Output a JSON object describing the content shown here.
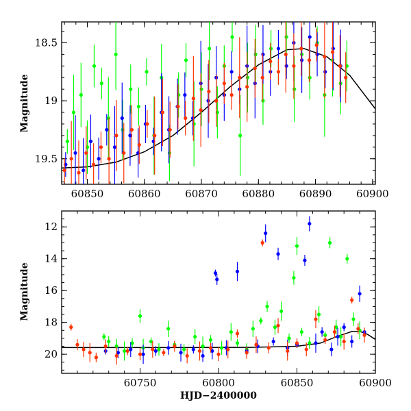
{
  "chart_data": [
    {
      "type": "scatter",
      "title": "",
      "xlabel": "",
      "ylabel": "Magnitude",
      "xlim": [
        60845.5,
        60900.5
      ],
      "ylim": [
        19.72,
        18.32
      ],
      "y_inverted": true,
      "x_ticks": [
        "60850",
        "60860",
        "60870",
        "60880",
        "60890",
        "60900"
      ],
      "y_ticks": [
        "18.5",
        "19",
        "19.5"
      ],
      "grid": false,
      "legend": "none",
      "series": [
        {
          "color": "#00ff00",
          "marker": "circle",
          "points": [
            [
              60846.5,
              19.35
            ],
            [
              60847.6,
              19.1
            ],
            [
              60848.9,
              18.95
            ],
            [
              60850.0,
              19.4
            ],
            [
              60851.2,
              18.7
            ],
            [
              60852.5,
              18.85
            ],
            [
              60853.7,
              19.15
            ],
            [
              60855.0,
              18.6
            ],
            [
              60856.2,
              19.25
            ],
            [
              60857.6,
              18.9
            ],
            [
              60859.0,
              19.05
            ],
            [
              60860.4,
              18.75
            ],
            [
              60861.7,
              19.3
            ],
            [
              60863.0,
              18.8
            ],
            [
              60864.4,
              19.45
            ],
            [
              60866.0,
              18.95
            ],
            [
              60867.3,
              18.65
            ],
            [
              60868.7,
              19.2
            ],
            [
              60870.0,
              18.9
            ],
            [
              60871.4,
              18.55
            ],
            [
              60872.8,
              19.1
            ],
            [
              60874.0,
              18.7
            ],
            [
              60875.4,
              18.45
            ],
            [
              60876.8,
              19.3
            ],
            [
              60878.1,
              18.8
            ],
            [
              60879.5,
              18.6
            ],
            [
              60880.8,
              19.0
            ],
            [
              60882.2,
              18.55
            ],
            [
              60883.5,
              18.75
            ],
            [
              60884.9,
              18.45
            ],
            [
              60886.3,
              18.9
            ],
            [
              60887.6,
              18.6
            ],
            [
              60889.0,
              18.8
            ],
            [
              60890.3,
              18.5
            ],
            [
              60891.6,
              18.95
            ],
            [
              60893.0,
              18.65
            ],
            [
              60894.4,
              18.85
            ],
            [
              60895.5,
              18.7
            ]
          ]
        },
        {
          "color": "#0000ff",
          "marker": "circle",
          "points": [
            [
              60846.2,
              19.55
            ],
            [
              60847.9,
              19.45
            ],
            [
              60849.3,
              19.6
            ],
            [
              60850.6,
              19.35
            ],
            [
              60852.0,
              19.5
            ],
            [
              60853.4,
              19.25
            ],
            [
              60854.8,
              19.4
            ],
            [
              60856.1,
              19.15
            ],
            [
              60857.5,
              19.3
            ],
            [
              60858.9,
              19.45
            ],
            [
              60860.2,
              19.2
            ],
            [
              60861.6,
              19.35
            ],
            [
              60863.0,
              19.1
            ],
            [
              60864.3,
              19.25
            ],
            [
              60865.8,
              19.05
            ],
            [
              60867.1,
              18.95
            ],
            [
              60868.5,
              19.15
            ],
            [
              60869.9,
              18.85
            ],
            [
              60871.2,
              19.0
            ],
            [
              60872.6,
              18.8
            ],
            [
              60874.0,
              18.95
            ],
            [
              60875.3,
              18.75
            ],
            [
              60876.7,
              18.9
            ],
            [
              60878.0,
              18.7
            ],
            [
              60879.4,
              18.85
            ],
            [
              60880.8,
              18.6
            ],
            [
              60882.1,
              18.75
            ],
            [
              60883.5,
              18.55
            ],
            [
              60884.9,
              18.7
            ],
            [
              60886.2,
              18.5
            ],
            [
              60887.6,
              18.65
            ],
            [
              60889.0,
              18.45
            ],
            [
              60890.3,
              18.6
            ],
            [
              60891.7,
              18.75
            ],
            [
              60893.1,
              18.55
            ],
            [
              60894.4,
              18.7
            ]
          ]
        },
        {
          "color": "#ff3300",
          "marker": "circle",
          "points": [
            [
              60846.0,
              19.6
            ],
            [
              60847.2,
              19.5
            ],
            [
              60848.5,
              19.62
            ],
            [
              60849.8,
              19.45
            ],
            [
              60851.1,
              19.55
            ],
            [
              60852.4,
              19.4
            ],
            [
              60853.8,
              19.5
            ],
            [
              60855.1,
              19.3
            ],
            [
              60856.4,
              19.45
            ],
            [
              60857.8,
              19.25
            ],
            [
              60859.1,
              19.38
            ],
            [
              60860.5,
              19.2
            ],
            [
              60861.8,
              19.3
            ],
            [
              60863.2,
              19.1
            ],
            [
              60864.5,
              19.25
            ],
            [
              60865.9,
              19.05
            ],
            [
              60867.2,
              19.15
            ],
            [
              60868.6,
              18.98
            ],
            [
              60869.9,
              19.08
            ],
            [
              60871.3,
              18.92
            ],
            [
              60872.6,
              19.0
            ],
            [
              60874.0,
              18.85
            ],
            [
              60875.3,
              18.95
            ],
            [
              60876.7,
              18.8
            ],
            [
              60878.0,
              18.88
            ],
            [
              60879.4,
              18.72
            ],
            [
              60880.7,
              18.8
            ],
            [
              60882.1,
              18.66
            ],
            [
              60883.5,
              18.75
            ],
            [
              60884.8,
              18.6
            ],
            [
              60886.2,
              18.7
            ],
            [
              60887.5,
              18.55
            ],
            [
              60888.9,
              18.65
            ],
            [
              60890.2,
              18.52
            ],
            [
              60891.6,
              18.62
            ],
            [
              60893.0,
              18.58
            ],
            [
              60894.3,
              18.7
            ],
            [
              60895.3,
              18.8
            ]
          ]
        }
      ],
      "model_curve": {
        "color": "#000000",
        "points": [
          [
            60845.5,
            19.58
          ],
          [
            60850,
            19.57
          ],
          [
            60855,
            19.53
          ],
          [
            60860,
            19.44
          ],
          [
            60865,
            19.3
          ],
          [
            60870,
            19.1
          ],
          [
            60875,
            18.88
          ],
          [
            60880,
            18.69
          ],
          [
            60885,
            18.56
          ],
          [
            60888,
            18.55
          ],
          [
            60892,
            18.62
          ],
          [
            60896,
            18.78
          ],
          [
            60900.5,
            19.07
          ]
        ]
      }
    },
    {
      "type": "scatter",
      "title": "",
      "xlabel": "HJD−2400000",
      "ylabel": "Magnitude",
      "xlim": [
        60700,
        60900
      ],
      "ylim": [
        21.2,
        11.0
      ],
      "y_inverted": true,
      "x_ticks": [
        "60750",
        "60800",
        "60850",
        "60900"
      ],
      "y_ticks": [
        "12",
        "14",
        "16",
        "18",
        "20"
      ],
      "grid": false,
      "legend": "none",
      "series": [
        {
          "color": "#00ff00",
          "marker": "circle",
          "points": [
            [
              60727,
              18.9
            ],
            [
              60730,
              19.2
            ],
            [
              60735,
              19.5
            ],
            [
              60740,
              19.8
            ],
            [
              60745,
              19.3
            ],
            [
              60750,
              17.6
            ],
            [
              60752,
              19.6
            ],
            [
              60757,
              19.2
            ],
            [
              60762,
              19.7
            ],
            [
              60768,
              18.4
            ],
            [
              60772,
              19.4
            ],
            [
              60778,
              19.7
            ],
            [
              60785,
              18.9
            ],
            [
              60790,
              19.5
            ],
            [
              60795,
              19.1
            ],
            [
              60802,
              19.6
            ],
            [
              60808,
              18.6
            ],
            [
              60812,
              19.3
            ],
            [
              60818,
              19.7
            ],
            [
              60822,
              18.4
            ],
            [
              60827,
              17.9
            ],
            [
              60831,
              17.0
            ],
            [
              60836,
              18.3
            ],
            [
              60840,
              17.3
            ],
            [
              60845,
              19.0
            ],
            [
              60848,
              15.2
            ],
            [
              60850,
              13.2
            ],
            [
              60853,
              18.6
            ],
            [
              60858,
              19.3
            ],
            [
              60864,
              17.5
            ],
            [
              60868,
              18.8
            ],
            [
              60871,
              13.0
            ],
            [
              60875,
              18.3
            ],
            [
              60878,
              18.9
            ],
            [
              60882,
              14.0
            ],
            [
              60886,
              17.8
            ],
            [
              60890,
              18.5
            ]
          ]
        },
        {
          "color": "#0000ff",
          "marker": "circle",
          "points": [
            [
              60728,
              19.8
            ],
            [
              60736,
              19.9
            ],
            [
              60744,
              19.7
            ],
            [
              60752,
              20.0
            ],
            [
              60760,
              19.8
            ],
            [
              60768,
              19.6
            ],
            [
              60776,
              19.9
            ],
            [
              60784,
              19.7
            ],
            [
              60790,
              20.1
            ],
            [
              60796,
              19.8
            ],
            [
              60798,
              14.9
            ],
            [
              60799,
              15.3
            ],
            [
              60805,
              19.6
            ],
            [
              60812,
              14.8
            ],
            [
              60818,
              19.8
            ],
            [
              60825,
              19.5
            ],
            [
              60830,
              12.4
            ],
            [
              60835,
              19.2
            ],
            [
              60838,
              13.7
            ],
            [
              60844,
              19.6
            ],
            [
              60850,
              19.4
            ],
            [
              60855,
              14.1
            ],
            [
              60858,
              11.8
            ],
            [
              60862,
              19.3
            ],
            [
              60866,
              18.6
            ],
            [
              60872,
              19.7
            ],
            [
              60876,
              18.9
            ],
            [
              60880,
              18.3
            ],
            [
              60885,
              19.2
            ],
            [
              60890,
              16.2
            ],
            [
              60893,
              18.6
            ]
          ]
        },
        {
          "color": "#ff3300",
          "marker": "circle",
          "points": [
            [
              60706,
              18.3
            ],
            [
              60710,
              19.4
            ],
            [
              60714,
              19.7
            ],
            [
              60718,
              19.9
            ],
            [
              60722,
              20.2
            ],
            [
              60728,
              19.5
            ],
            [
              60735,
              20.1
            ],
            [
              60742,
              19.8
            ],
            [
              60750,
              20.0
            ],
            [
              60758,
              19.7
            ],
            [
              60765,
              19.9
            ],
            [
              60772,
              19.5
            ],
            [
              60780,
              20.1
            ],
            [
              60788,
              19.8
            ],
            [
              60795,
              19.6
            ],
            [
              60800,
              20.0
            ],
            [
              60806,
              19.7
            ],
            [
              60812,
              18.7
            ],
            [
              60818,
              19.9
            ],
            [
              60824,
              19.4
            ],
            [
              60828,
              13.0
            ],
            [
              60832,
              19.6
            ],
            [
              60838,
              18.2
            ],
            [
              60844,
              19.8
            ],
            [
              60850,
              19.3
            ],
            [
              60856,
              19.7
            ],
            [
              60862,
              17.8
            ],
            [
              60868,
              19.1
            ],
            [
              60874,
              18.6
            ],
            [
              60880,
              19.2
            ],
            [
              60885,
              16.6
            ],
            [
              60889,
              18.4
            ],
            [
              60893,
              18.8
            ]
          ]
        }
      ],
      "model_curve": {
        "color": "#000000",
        "points": [
          [
            60700,
            19.58
          ],
          [
            60760,
            19.58
          ],
          [
            60820,
            19.57
          ],
          [
            60850,
            19.5
          ],
          [
            60865,
            19.3
          ],
          [
            60875,
            18.9
          ],
          [
            60885,
            18.57
          ],
          [
            60890,
            18.56
          ],
          [
            60895,
            18.75
          ],
          [
            60900,
            19.07
          ]
        ]
      }
    }
  ]
}
